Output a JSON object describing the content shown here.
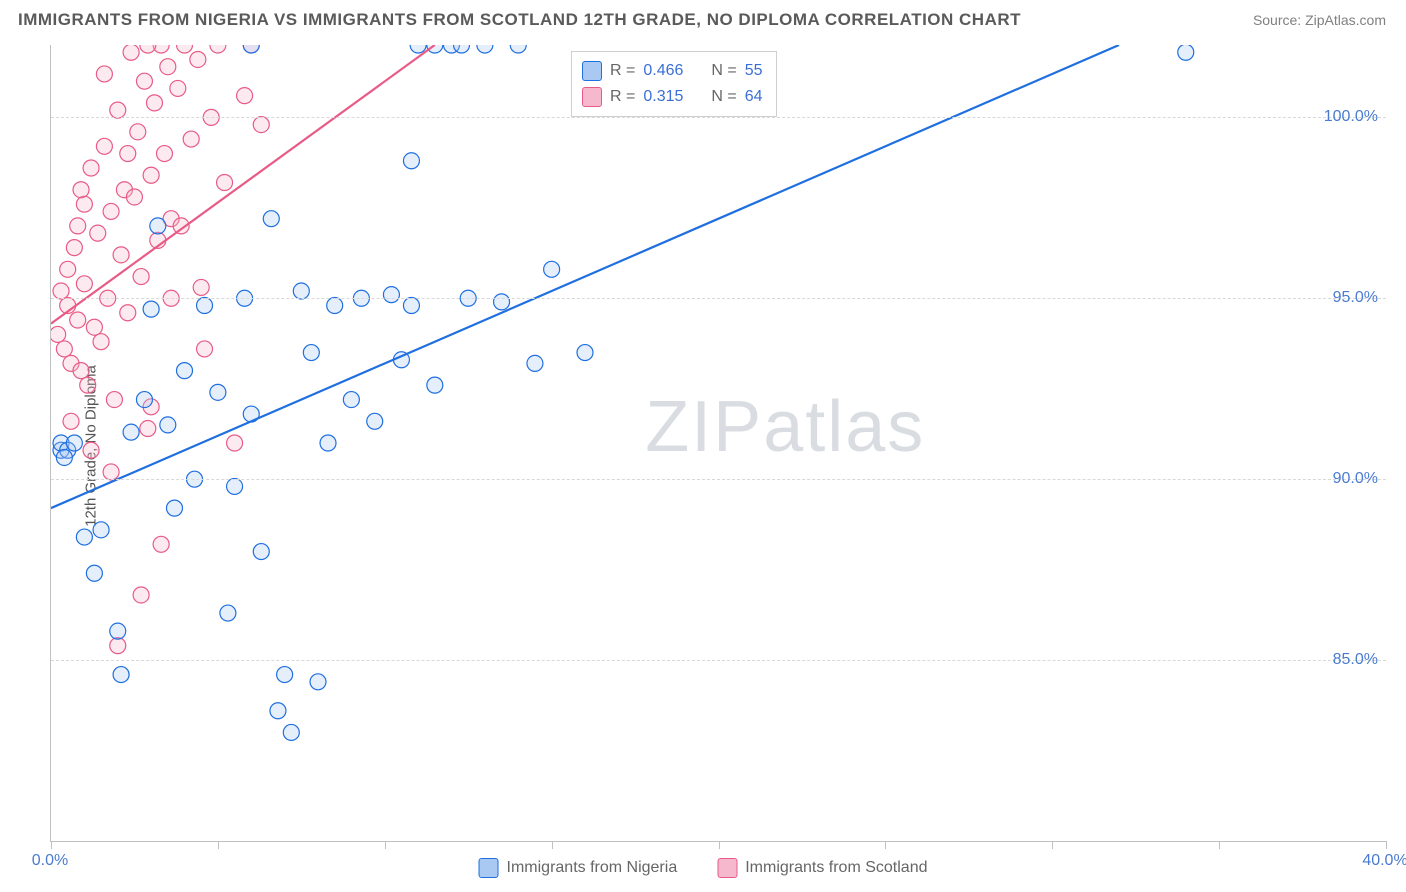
{
  "title": "IMMIGRANTS FROM NIGERIA VS IMMIGRANTS FROM SCOTLAND 12TH GRADE, NO DIPLOMA CORRELATION CHART",
  "source_label": "Source: ",
  "source_name": "ZipAtlas.com",
  "ylabel": "12th Grade, No Diploma",
  "watermark_a": "ZIP",
  "watermark_b": "atlas",
  "chart": {
    "type": "scatter",
    "xlim": [
      0,
      40
    ],
    "ylim": [
      80,
      102
    ],
    "x_ticks": [
      0,
      5,
      10,
      15,
      20,
      25,
      30,
      35,
      40
    ],
    "x_tick_labels": {
      "0": "0.0%",
      "40": "40.0%"
    },
    "y_gridlines": [
      85,
      90,
      95,
      100
    ],
    "y_tick_labels": {
      "85": "85.0%",
      "90": "90.0%",
      "95": "95.0%",
      "100": "100.0%"
    },
    "background_color": "#ffffff",
    "grid_color": "#d8d8d8",
    "axis_color": "#c0c0c0",
    "marker_radius": 8,
    "marker_stroke_width": 1.2,
    "marker_fill_opacity": 0.3,
    "line_width": 2.2,
    "series": [
      {
        "name": "Immigrants from Nigeria",
        "color": "#1f6fe0",
        "fill": "#a9c8f2",
        "R": "0.466",
        "N": "55",
        "trend": {
          "x1": 0,
          "y1": 89.2,
          "x2": 32,
          "y2": 102
        },
        "points": [
          [
            0.3,
            90.8
          ],
          [
            0.3,
            91.0
          ],
          [
            0.5,
            90.8
          ],
          [
            0.7,
            91.0
          ],
          [
            0.4,
            90.6
          ],
          [
            1.0,
            88.4
          ],
          [
            1.5,
            88.6
          ],
          [
            1.3,
            87.4
          ],
          [
            2.0,
            85.8
          ],
          [
            2.1,
            84.6
          ],
          [
            2.4,
            91.3
          ],
          [
            2.8,
            92.2
          ],
          [
            3.0,
            94.7
          ],
          [
            3.2,
            97.0
          ],
          [
            3.5,
            91.5
          ],
          [
            3.7,
            89.2
          ],
          [
            4.0,
            93.0
          ],
          [
            4.3,
            90.0
          ],
          [
            4.6,
            94.8
          ],
          [
            5.0,
            92.4
          ],
          [
            5.3,
            86.3
          ],
          [
            5.5,
            89.8
          ],
          [
            5.8,
            95.0
          ],
          [
            6.0,
            91.8
          ],
          [
            6.3,
            88.0
          ],
          [
            6.6,
            97.2
          ],
          [
            6.8,
            83.6
          ],
          [
            7.0,
            84.6
          ],
          [
            7.2,
            83.0
          ],
          [
            7.5,
            95.2
          ],
          [
            7.8,
            93.5
          ],
          [
            8.0,
            84.4
          ],
          [
            8.3,
            91.0
          ],
          [
            8.5,
            94.8
          ],
          [
            9.0,
            92.2
          ],
          [
            9.3,
            95.0
          ],
          [
            9.7,
            91.6
          ],
          [
            10.2,
            95.1
          ],
          [
            10.5,
            93.3
          ],
          [
            10.8,
            94.8
          ],
          [
            11.5,
            92.6
          ],
          [
            12.0,
            102
          ],
          [
            12.5,
            95.0
          ],
          [
            13.0,
            102
          ],
          [
            13.5,
            94.9
          ],
          [
            14.0,
            102
          ],
          [
            14.5,
            93.2
          ],
          [
            15.0,
            95.8
          ],
          [
            11.5,
            102
          ],
          [
            10.8,
            98.8
          ],
          [
            16.0,
            93.5
          ],
          [
            12.3,
            102
          ],
          [
            34.0,
            101.8
          ],
          [
            11.0,
            102
          ],
          [
            6.0,
            102
          ]
        ]
      },
      {
        "name": "Immigrants from Scotland",
        "color": "#e85b86",
        "fill": "#f6b8cc",
        "R": "0.315",
        "N": "64",
        "trend": {
          "x1": 0,
          "y1": 94.3,
          "x2": 11.5,
          "y2": 102
        },
        "points": [
          [
            0.2,
            94.0
          ],
          [
            0.3,
            95.2
          ],
          [
            0.4,
            93.6
          ],
          [
            0.5,
            94.8
          ],
          [
            0.5,
            95.8
          ],
          [
            0.6,
            93.2
          ],
          [
            0.7,
            96.4
          ],
          [
            0.8,
            94.4
          ],
          [
            0.8,
            97.0
          ],
          [
            0.9,
            93.0
          ],
          [
            1.0,
            97.6
          ],
          [
            1.0,
            95.4
          ],
          [
            1.1,
            92.6
          ],
          [
            1.2,
            98.6
          ],
          [
            1.3,
            94.2
          ],
          [
            1.4,
            96.8
          ],
          [
            1.5,
            93.8
          ],
          [
            1.6,
            99.2
          ],
          [
            1.7,
            95.0
          ],
          [
            1.8,
            97.4
          ],
          [
            1.9,
            92.2
          ],
          [
            2.0,
            100.2
          ],
          [
            2.1,
            96.2
          ],
          [
            2.2,
            98.0
          ],
          [
            2.3,
            94.6
          ],
          [
            2.4,
            101.8
          ],
          [
            2.5,
            97.8
          ],
          [
            2.6,
            99.6
          ],
          [
            2.7,
            95.6
          ],
          [
            2.8,
            101.0
          ],
          [
            2.9,
            91.4
          ],
          [
            3.0,
            98.4
          ],
          [
            3.1,
            100.4
          ],
          [
            3.2,
            96.6
          ],
          [
            3.3,
            102
          ],
          [
            3.4,
            99.0
          ],
          [
            3.5,
            101.4
          ],
          [
            3.6,
            97.2
          ],
          [
            3.8,
            100.8
          ],
          [
            4.0,
            102
          ],
          [
            4.2,
            99.4
          ],
          [
            4.4,
            101.6
          ],
          [
            4.6,
            93.6
          ],
          [
            4.8,
            100.0
          ],
          [
            5.0,
            102
          ],
          [
            5.2,
            98.2
          ],
          [
            5.5,
            91.0
          ],
          [
            5.8,
            100.6
          ],
          [
            6.0,
            102
          ],
          [
            6.3,
            99.8
          ],
          [
            2.0,
            85.4
          ],
          [
            2.7,
            86.8
          ],
          [
            3.3,
            88.2
          ],
          [
            1.8,
            90.2
          ],
          [
            3.0,
            92.0
          ],
          [
            1.2,
            90.8
          ],
          [
            0.6,
            91.6
          ],
          [
            4.5,
            95.3
          ],
          [
            3.9,
            97.0
          ],
          [
            2.3,
            99.0
          ],
          [
            1.6,
            101.2
          ],
          [
            2.9,
            102
          ],
          [
            3.6,
            95.0
          ],
          [
            0.9,
            98.0
          ]
        ]
      }
    ]
  },
  "legend": {
    "r_label": "R =",
    "n_label": "N ="
  },
  "bottom_legend": [
    {
      "label": "Immigrants from Nigeria",
      "fill": "#a9c8f2",
      "stroke": "#1f6fe0"
    },
    {
      "label": "Immigrants from Scotland",
      "fill": "#f6b8cc",
      "stroke": "#e85b86"
    }
  ]
}
